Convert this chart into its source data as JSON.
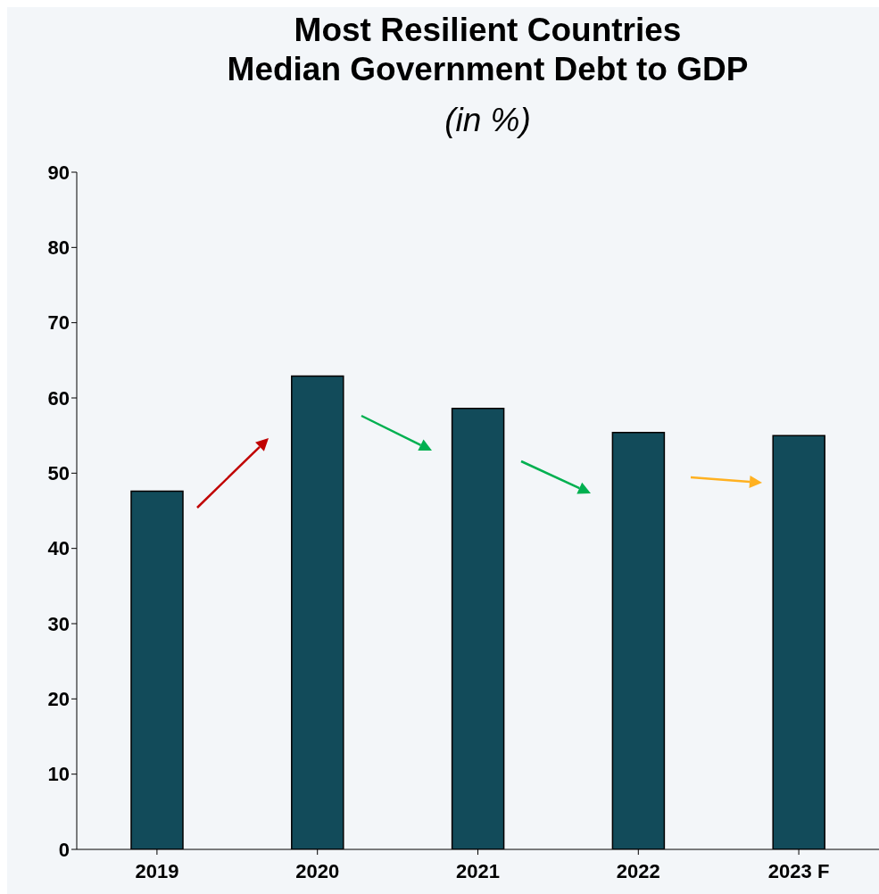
{
  "chart_data": {
    "type": "bar",
    "title": "Most Resilient Countries\nMedian Government Debt to GDP",
    "subtitle": "(in %)",
    "categories": [
      "2019",
      "2020",
      "2021",
      "2022",
      "2023 F"
    ],
    "values": [
      47.6,
      62.9,
      58.6,
      55.4,
      55.0
    ],
    "color": "#124b5a",
    "ylim": [
      0,
      90
    ],
    "yticks": [
      0,
      10,
      20,
      30,
      40,
      50,
      60,
      70,
      80,
      90
    ],
    "grid": false
  }
}
